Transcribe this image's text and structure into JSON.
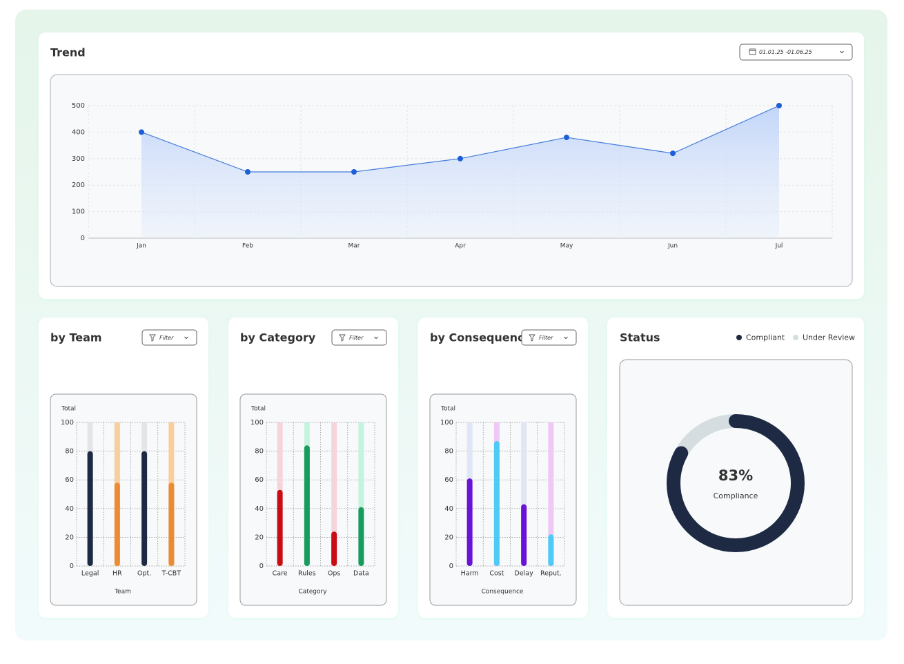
{
  "chart_data": [
    {
      "type": "line",
      "title": "Trend",
      "date_range": "01.01.25 -01.06.25",
      "categories": [
        "Jan",
        "Feb",
        "Mar",
        "Apr",
        "May",
        "Jun",
        "Jul"
      ],
      "values": [
        400,
        250,
        250,
        300,
        380,
        320,
        500
      ],
      "color": "#1d5fd6",
      "ylim": [
        0,
        500
      ],
      "yticks": [
        0,
        100,
        200,
        300,
        400,
        500
      ],
      "grid": true
    },
    {
      "type": "bar",
      "title": "by Team",
      "filter_label": "Filter",
      "y_label": "Total",
      "x_label": "Team",
      "categories": [
        "Legal",
        "HR",
        "Opt.",
        "T-CBT"
      ],
      "values": [
        80,
        58,
        80,
        58
      ],
      "colors": [
        "#1e2a44",
        "#ec8b35",
        "#1e2a44",
        "#ec8b35"
      ],
      "track_colors": [
        "#e3e5e8",
        "#f8cf9c",
        "#e3e5e8",
        "#f8cf9c"
      ],
      "ylim": [
        0,
        100
      ],
      "yticks": [
        0,
        20,
        40,
        60,
        80,
        100
      ],
      "grid": true
    },
    {
      "type": "bar",
      "title": "by Category",
      "filter_label": "Filter",
      "y_label": "Total",
      "x_label": "Category",
      "categories": [
        "Care",
        "Rules",
        "Ops",
        "Data"
      ],
      "values": [
        53,
        84,
        24,
        41
      ],
      "colors": [
        "#c80d14",
        "#1a9b5e",
        "#c80d14",
        "#1a9b5e"
      ],
      "track_colors": [
        "#f6d5da",
        "#c6f3de",
        "#f6d5da",
        "#c6f3de"
      ],
      "ylim": [
        0,
        100
      ],
      "yticks": [
        0,
        20,
        40,
        60,
        80,
        100
      ],
      "grid": true
    },
    {
      "type": "bar",
      "title": "by Consequence",
      "filter_label": "Filter",
      "y_label": "Total",
      "x_label": "Consequence",
      "categories": [
        "Harm",
        "Cost",
        "Delay",
        "Reput."
      ],
      "values": [
        61,
        87,
        43,
        22
      ],
      "colors": [
        "#6a12d6",
        "#4fc9f5",
        "#6a12d6",
        "#4fc9f5"
      ],
      "track_colors": [
        "#e0e6f3",
        "#f0c8f4",
        "#e0e6f3",
        "#f0c8f4"
      ],
      "ylim": [
        0,
        100
      ],
      "yticks": [
        0,
        20,
        40,
        60,
        80,
        100
      ],
      "grid": true
    },
    {
      "type": "donut",
      "title": "Status",
      "categories": [
        "Compliant",
        "Under Review"
      ],
      "values": [
        83,
        17
      ],
      "value_labels": [
        "83%",
        null
      ],
      "center_text": "Compliance",
      "colors": [
        "#1e2a44",
        "#d5dde0"
      ]
    }
  ]
}
